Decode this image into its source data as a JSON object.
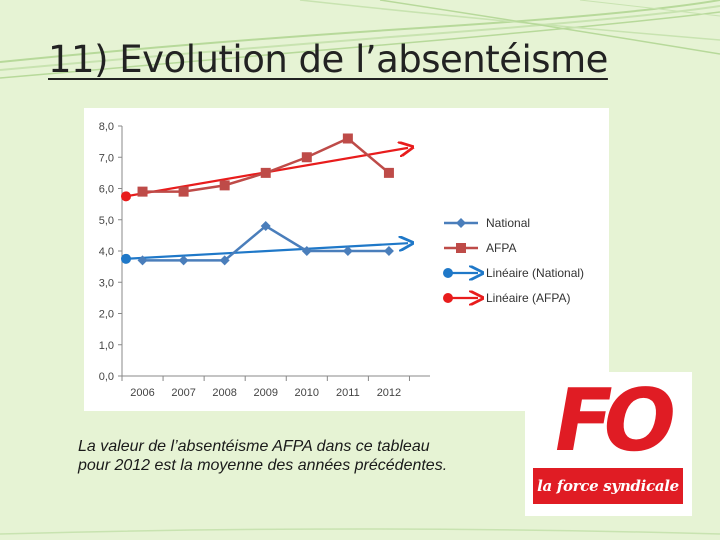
{
  "slide": {
    "title": "11) Evolution de l’absentéisme",
    "caption_lines": [
      "La valeur de l’absentéisme AFPA dans ce tableau",
      "pour 2012 est la moyenne des années précédentes."
    ]
  },
  "logo": {
    "main": "FO",
    "band": "la force syndicale"
  },
  "colors": {
    "background": "#e6f3d4",
    "national": "#4a7ebb",
    "afpa": "#be4b48",
    "trend_national": "#1f78c8",
    "trend_afpa": "#e81c1c",
    "logo_red": "#e01c24"
  },
  "chart_data": {
    "type": "line",
    "categories": [
      "2006",
      "2007",
      "2008",
      "2009",
      "2010",
      "2011",
      "2012"
    ],
    "y_tick_labels": [
      "0,0",
      "1,0",
      "2,0",
      "3,0",
      "4,0",
      "5,0",
      "6,0",
      "7,0",
      "8,0"
    ],
    "ylim": [
      0,
      8
    ],
    "grid": false,
    "legend_position": "right",
    "series": [
      {
        "name": "National",
        "marker": "diamond",
        "values": [
          3.7,
          3.7,
          3.7,
          4.8,
          4.0,
          4.0,
          4.0
        ]
      },
      {
        "name": "AFPA",
        "marker": "square",
        "values": [
          5.9,
          5.9,
          6.1,
          6.5,
          7.0,
          7.6,
          6.5
        ]
      }
    ],
    "trendlines": [
      {
        "name": "Linéaire (National)",
        "of": "National",
        "values": [
          3.75,
          4.25
        ]
      },
      {
        "name": "Linéaire (AFPA)",
        "of": "AFPA",
        "values": [
          5.75,
          7.3
        ]
      }
    ]
  }
}
